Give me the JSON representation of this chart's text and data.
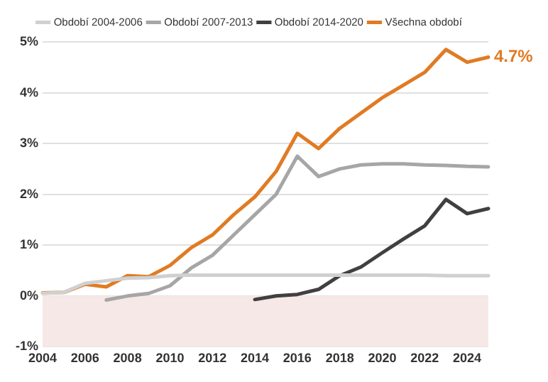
{
  "chart_data": {
    "type": "line",
    "xlim": [
      2004,
      2025
    ],
    "xticks": [
      2004,
      2006,
      2008,
      2010,
      2012,
      2014,
      2016,
      2018,
      2020,
      2022,
      2024
    ],
    "ylim": [
      -1,
      5
    ],
    "yticks": [
      {
        "value": -1,
        "label": "-1%"
      },
      {
        "value": 0,
        "label": "0%"
      },
      {
        "value": 1,
        "label": "1%"
      },
      {
        "value": 2,
        "label": "2%"
      },
      {
        "value": 3,
        "label": "3%"
      },
      {
        "value": 4,
        "label": "4%"
      },
      {
        "value": 5,
        "label": "5%"
      }
    ],
    "grid": "y",
    "legend": "top",
    "marker": "none",
    "series": [
      {
        "name": "Období 2004-2006",
        "color": "#d0d0d0",
        "x": [
          2004,
          2005,
          2006,
          2007,
          2008,
          2009,
          2010,
          2011,
          2012,
          2013,
          2014,
          2015,
          2016,
          2017,
          2018,
          2019,
          2020,
          2021,
          2022,
          2023,
          2024,
          2025
        ],
        "values": [
          0.05,
          0.07,
          0.25,
          0.3,
          0.35,
          0.36,
          0.4,
          0.41,
          0.41,
          0.41,
          0.41,
          0.41,
          0.41,
          0.41,
          0.41,
          0.41,
          0.41,
          0.41,
          0.41,
          0.4,
          0.4,
          0.4
        ]
      },
      {
        "name": "Období 2007-2013",
        "color": "#a6a6a6",
        "x": [
          2007,
          2008,
          2009,
          2010,
          2011,
          2012,
          2013,
          2014,
          2015,
          2016,
          2017,
          2018,
          2019,
          2020,
          2021,
          2022,
          2023,
          2024,
          2025
        ],
        "values": [
          -0.08,
          0.0,
          0.05,
          0.2,
          0.55,
          0.8,
          1.2,
          1.6,
          2.0,
          2.75,
          2.35,
          2.5,
          2.58,
          2.6,
          2.6,
          2.58,
          2.57,
          2.55,
          2.54
        ]
      },
      {
        "name": "Období 2014-2020",
        "color": "#404040",
        "x": [
          2014,
          2015,
          2016,
          2017,
          2018,
          2019,
          2020,
          2021,
          2022,
          2023,
          2024,
          2025
        ],
        "values": [
          -0.07,
          0.0,
          0.03,
          0.13,
          0.4,
          0.57,
          0.85,
          1.12,
          1.38,
          1.9,
          1.62,
          1.72
        ]
      },
      {
        "name": "Všechna období",
        "color": "#e07b24",
        "x": [
          2004,
          2005,
          2006,
          2007,
          2008,
          2009,
          2010,
          2011,
          2012,
          2013,
          2014,
          2015,
          2016,
          2017,
          2018,
          2019,
          2020,
          2021,
          2022,
          2023,
          2024,
          2025
        ],
        "values": [
          0.06,
          0.07,
          0.23,
          0.18,
          0.4,
          0.38,
          0.6,
          0.95,
          1.2,
          1.6,
          1.95,
          2.45,
          3.2,
          2.9,
          3.3,
          3.6,
          3.9,
          4.15,
          4.4,
          4.85,
          4.6,
          4.7
        ]
      }
    ],
    "bands": [
      {
        "axis": "y",
        "from": -1,
        "to": 0,
        "color": "#f6e8e6"
      }
    ],
    "annotations": [
      {
        "text": "4.7%",
        "x": 2025,
        "y": 4.7
      }
    ]
  }
}
